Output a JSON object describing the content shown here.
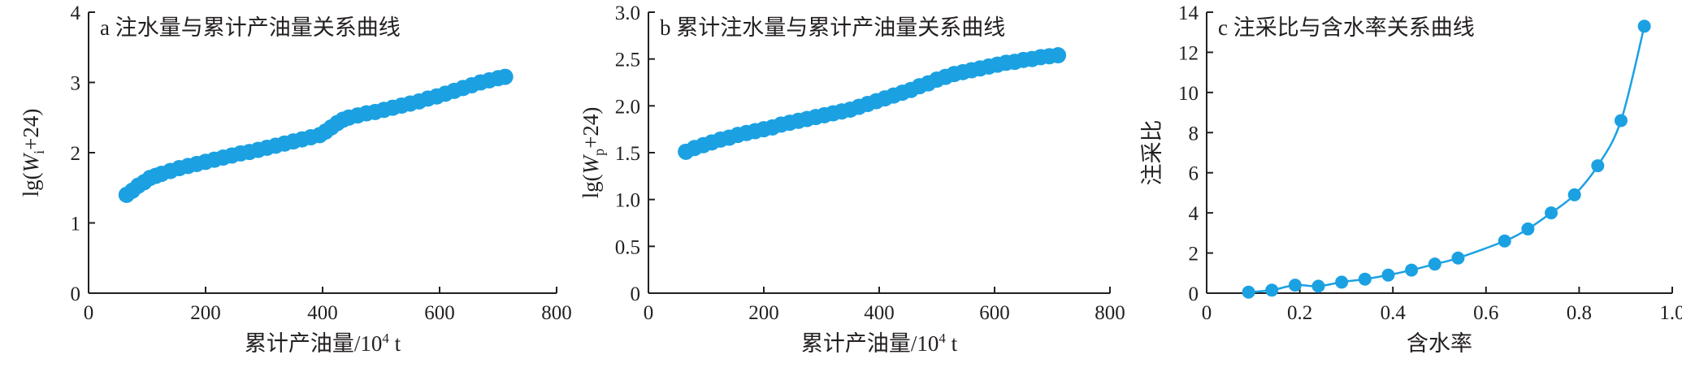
{
  "colors": {
    "series": "#1ba1e2",
    "axis": "#231f20"
  },
  "chart_data": [
    {
      "type": "scatter",
      "title": "a 注水量与累计产油量关系曲线",
      "xlabel": "累计产油量/10⁴ t",
      "ylabel": "lg(Wi+24)",
      "xlim": [
        0,
        800
      ],
      "ylim": [
        0,
        4
      ],
      "xticks": [
        0,
        200,
        400,
        600,
        800
      ],
      "yticks": [
        0,
        1,
        2,
        3,
        4
      ],
      "xtick_labels": [
        "0",
        "200",
        "400",
        "600",
        "800"
      ],
      "ytick_labels": [
        "0",
        "1",
        "2",
        "3",
        "4"
      ],
      "grid": false,
      "series": [
        {
          "x": [
            65,
            75,
            85,
            95,
            105,
            115,
            125,
            140,
            155,
            170,
            185,
            200,
            215,
            230,
            245,
            260,
            275,
            290,
            305,
            320,
            335,
            350,
            365,
            380,
            395,
            405,
            415,
            425,
            435,
            445,
            460,
            475,
            490,
            505,
            520,
            535,
            550,
            565,
            580,
            595,
            610,
            625,
            640,
            655,
            670,
            685,
            700,
            712
          ],
          "y": [
            1.4,
            1.46,
            1.53,
            1.58,
            1.64,
            1.67,
            1.7,
            1.74,
            1.78,
            1.81,
            1.84,
            1.87,
            1.9,
            1.93,
            1.96,
            1.99,
            2.01,
            2.04,
            2.07,
            2.1,
            2.13,
            2.16,
            2.19,
            2.22,
            2.25,
            2.3,
            2.36,
            2.42,
            2.47,
            2.5,
            2.53,
            2.56,
            2.58,
            2.61,
            2.64,
            2.67,
            2.7,
            2.73,
            2.77,
            2.8,
            2.84,
            2.88,
            2.92,
            2.96,
            3.0,
            3.03,
            3.06,
            3.08
          ]
        }
      ]
    },
    {
      "type": "scatter",
      "title": "b 累计注水量与累计产油量关系曲线",
      "xlabel": "累计产油量/10⁴ t",
      "ylabel": "lg(Wp+24)",
      "xlim": [
        0,
        800
      ],
      "ylim": [
        0,
        3.0
      ],
      "xticks": [
        0,
        200,
        400,
        600,
        800
      ],
      "yticks": [
        0,
        0.5,
        1.0,
        1.5,
        2.0,
        2.5,
        3.0
      ],
      "xtick_labels": [
        "0",
        "200",
        "400",
        "600",
        "800"
      ],
      "ytick_labels": [
        "0",
        "0.5",
        "1.0",
        "1.5",
        "2.0",
        "2.5",
        "3.0"
      ],
      "grid": false,
      "series": [
        {
          "x": [
            65,
            80,
            95,
            110,
            125,
            140,
            155,
            170,
            185,
            200,
            215,
            230,
            245,
            260,
            275,
            290,
            305,
            320,
            335,
            350,
            365,
            380,
            395,
            410,
            425,
            440,
            455,
            470,
            485,
            500,
            515,
            530,
            545,
            560,
            575,
            590,
            605,
            620,
            635,
            650,
            665,
            680,
            695,
            710
          ],
          "y": [
            1.51,
            1.55,
            1.58,
            1.61,
            1.64,
            1.66,
            1.69,
            1.71,
            1.73,
            1.75,
            1.77,
            1.8,
            1.82,
            1.84,
            1.86,
            1.88,
            1.9,
            1.92,
            1.94,
            1.96,
            1.99,
            2.02,
            2.05,
            2.08,
            2.11,
            2.14,
            2.17,
            2.21,
            2.24,
            2.28,
            2.31,
            2.34,
            2.36,
            2.38,
            2.4,
            2.42,
            2.44,
            2.46,
            2.47,
            2.49,
            2.5,
            2.52,
            2.53,
            2.54
          ]
        }
      ]
    },
    {
      "type": "scatter",
      "title": "c 注采比与含水率关系曲线",
      "xlabel": "含水率",
      "ylabel": "注采比",
      "xlim": [
        0,
        1.0
      ],
      "ylim": [
        0,
        14
      ],
      "xticks": [
        0,
        0.2,
        0.4,
        0.6,
        0.8,
        1.0
      ],
      "yticks": [
        0,
        2,
        4,
        6,
        8,
        10,
        12,
        14
      ],
      "xtick_labels": [
        "0",
        "0.2",
        "0.4",
        "0.6",
        "0.8",
        "1.0"
      ],
      "ytick_labels": [
        "0",
        "2",
        "4",
        "6",
        "8",
        "10",
        "12",
        "14"
      ],
      "grid": false,
      "series": [
        {
          "x": [
            0.09,
            0.14,
            0.19,
            0.24,
            0.29,
            0.34,
            0.39,
            0.44,
            0.49,
            0.54,
            0.64,
            0.69,
            0.74,
            0.79,
            0.84,
            0.89,
            0.94
          ],
          "y": [
            0.05,
            0.15,
            0.4,
            0.35,
            0.55,
            0.7,
            0.9,
            1.15,
            1.45,
            1.75,
            2.6,
            3.2,
            4.0,
            4.9,
            6.35,
            8.6,
            13.3
          ],
          "fit_curve": true
        }
      ]
    }
  ]
}
